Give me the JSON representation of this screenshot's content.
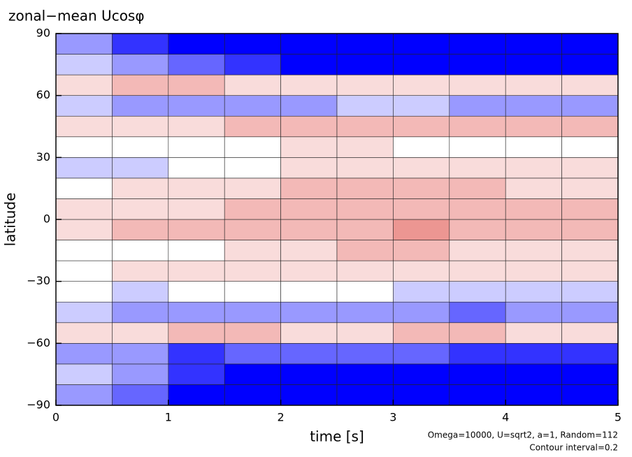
{
  "chart_data": {
    "type": "heatmap",
    "title": "zonal−mean Ucosφ",
    "xlabel": "time [s]",
    "ylabel": "latitude",
    "notes": [
      "Omega=10000, U=sqrt2, a=1, Random=112",
      "Contour interval=0.2"
    ],
    "x_edges": [
      0,
      0.5,
      1,
      1.5,
      2,
      2.5,
      3,
      3.5,
      4,
      4.5,
      5
    ],
    "y_edges": [
      -90,
      -80,
      -70,
      -60,
      -50,
      -40,
      -30,
      -20,
      -10,
      0,
      10,
      20,
      30,
      40,
      50,
      60,
      70,
      80,
      90
    ],
    "z": [
      [
        -0.4,
        -0.6,
        -1.2,
        -1.4,
        -1.4,
        -1.4,
        -1.4,
        -1.4,
        -1.4,
        -1.4
      ],
      [
        -0.2,
        -0.4,
        -0.8,
        -1,
        -1.2,
        -1.2,
        -1.2,
        -1.2,
        -1.2,
        -1.2
      ],
      [
        -0.4,
        -0.4,
        -0.8,
        -0.6,
        -0.6,
        -0.6,
        -0.6,
        -0.8,
        -0.8,
        -0.8
      ],
      [
        0.2,
        0.2,
        0.4,
        0.4,
        0.2,
        0.2,
        0.4,
        0.4,
        0.2,
        0.2
      ],
      [
        -0.2,
        -0.4,
        -0.4,
        -0.4,
        -0.4,
        -0.4,
        -0.4,
        -0.6,
        -0.4,
        -0.4
      ],
      [
        0,
        -0.2,
        0,
        0,
        0,
        0,
        -0.2,
        -0.2,
        -0.2,
        -0.2
      ],
      [
        0,
        0.2,
        0.2,
        0.2,
        0.2,
        0.2,
        0.2,
        0.2,
        0.2,
        0.2
      ],
      [
        0,
        0,
        0,
        0.2,
        0.2,
        0.4,
        0.4,
        0.2,
        0.2,
        0.2
      ],
      [
        0.2,
        0.4,
        0.4,
        0.4,
        0.4,
        0.4,
        0.6,
        0.4,
        0.4,
        0.4
      ],
      [
        0.2,
        0.2,
        0.2,
        0.4,
        0.4,
        0.4,
        0.4,
        0.4,
        0.4,
        0.4
      ],
      [
        0,
        0.2,
        0.2,
        0.2,
        0.4,
        0.4,
        0.4,
        0.4,
        0.2,
        0.2
      ],
      [
        -0.2,
        -0.2,
        0,
        0,
        0.2,
        0.2,
        0.2,
        0.2,
        0.2,
        0.2
      ],
      [
        0,
        0,
        0,
        0,
        0.2,
        0.2,
        0,
        0,
        0,
        0
      ],
      [
        0.2,
        0.2,
        0.2,
        0.4,
        0.4,
        0.4,
        0.4,
        0.4,
        0.4,
        0.4
      ],
      [
        -0.2,
        -0.4,
        -0.4,
        -0.4,
        -0.4,
        -0.2,
        -0.2,
        -0.4,
        -0.4,
        -0.4
      ],
      [
        0.2,
        0.4,
        0.4,
        0.2,
        0.2,
        0.2,
        0.2,
        0.2,
        0.2,
        0.2
      ],
      [
        -0.2,
        -0.4,
        -0.6,
        -0.8,
        -1,
        -1.2,
        -1.2,
        -1.2,
        -1.2,
        -1.2
      ],
      [
        -0.4,
        -0.8,
        -1.2,
        -1.4,
        -1.4,
        -1.4,
        -1.4,
        -1.4,
        -1.4,
        -1.4
      ]
    ],
    "negative_color": "#0000ff",
    "zero_color": "#ffffff",
    "positive_color": "#e0504a",
    "clim": [
      -1,
      1
    ],
    "xlim": [
      0,
      5
    ],
    "xticks": [
      0,
      1,
      2,
      3,
      4,
      5
    ],
    "ylim": [
      -90,
      90
    ],
    "yticks": [
      {
        "value": -90,
        "label": "−90"
      },
      {
        "value": -60,
        "label": "−60"
      },
      {
        "value": -30,
        "label": "−30"
      },
      0,
      30,
      60,
      90
    ]
  }
}
